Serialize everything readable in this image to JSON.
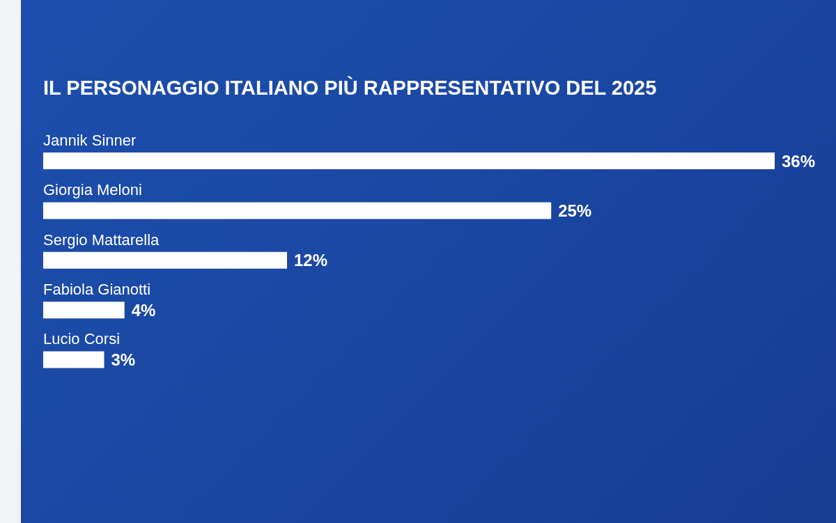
{
  "chart_data": {
    "type": "bar",
    "orientation": "horizontal",
    "title": "IL PERSONAGGIO ITALIANO PIÙ RAPPRESENTATIVO DEL 2025",
    "categories": [
      "Jannik Sinner",
      "Giorgia Meloni",
      "Sergio Mattarella",
      "Fabiola Gianotti",
      "Lucio Corsi"
    ],
    "values": [
      36,
      25,
      12,
      4,
      3
    ],
    "value_labels": [
      "36%",
      "25%",
      "12%",
      "4%",
      "3%"
    ],
    "color": "#ffffff",
    "grid": false,
    "legend": false
  }
}
